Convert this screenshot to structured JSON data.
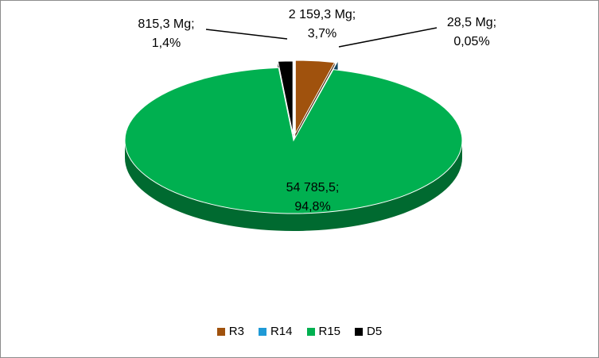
{
  "chart_data": {
    "type": "pie",
    "style": "3d-exploded",
    "categories": [
      "R3",
      "R14",
      "R15",
      "D5"
    ],
    "values": [
      2159.3,
      28.5,
      54785.5,
      815.3
    ],
    "percent": [
      3.7,
      0.05,
      94.8,
      1.4
    ],
    "colors": [
      "#a0520d",
      "#1f9ad6",
      "#00b050",
      "#000000"
    ],
    "labels": [
      {
        "line1": "2 159,3 Mg;",
        "line2": "3,7%"
      },
      {
        "line1": "28,5 Mg;",
        "line2": "0,05%"
      },
      {
        "line1": "54 785,5;",
        "line2": "94,8%"
      },
      {
        "line1": "815,3 Mg;",
        "line2": "1,4%"
      }
    ],
    "legend": {
      "position": "bottom",
      "entries": [
        "R3",
        "R14",
        "R15",
        "D5"
      ]
    }
  }
}
